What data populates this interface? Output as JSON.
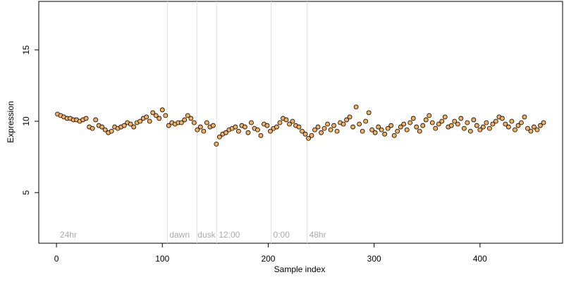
{
  "chart_data": {
    "type": "scatter",
    "x_label": "Sample index",
    "y_label": "Expression",
    "xlim": [
      -16.7,
      478
    ],
    "ylim": [
      1.45,
      18.4
    ],
    "xticks": [
      0,
      100,
      200,
      300,
      400
    ],
    "yticks": [
      5,
      10,
      15
    ],
    "vlines": [
      104.7,
      132.7,
      151.3,
      202.7,
      236.7
    ],
    "annotations": [
      {
        "x": 3.3,
        "text": "24hr"
      },
      {
        "x": 106.7,
        "text": "dawn"
      },
      {
        "x": 133.3,
        "text": "dusk"
      },
      {
        "x": 153.3,
        "text": "12:00"
      },
      {
        "x": 204.7,
        "text": "0:00"
      },
      {
        "x": 238.7,
        "text": "48hr"
      }
    ],
    "series": [
      {
        "color": "#f0b060",
        "x": [
          1,
          4,
          7,
          10,
          13,
          16,
          19,
          22,
          25,
          28,
          31,
          34,
          37,
          40,
          43,
          46,
          49,
          52,
          55,
          58,
          61,
          64,
          67,
          70,
          73,
          76,
          79,
          82,
          85,
          88,
          91,
          94,
          97,
          100,
          103,
          106,
          109,
          112,
          115,
          118,
          121,
          124,
          127,
          130,
          133,
          136,
          139,
          142,
          145,
          148,
          151,
          154,
          157,
          160,
          163,
          166,
          169,
          172,
          175,
          178,
          181,
          184,
          187,
          190,
          193,
          196,
          199,
          202,
          205,
          208,
          211,
          214,
          217,
          220,
          223,
          226,
          229,
          232,
          235,
          238,
          241,
          244,
          247,
          250,
          253,
          256,
          259,
          262,
          265,
          268,
          271,
          274,
          277,
          280,
          283,
          286,
          289,
          292,
          295,
          298,
          301,
          304,
          307,
          310,
          313,
          316,
          319,
          322,
          325,
          328,
          331,
          334,
          337,
          340,
          343,
          346,
          349,
          352,
          355,
          358,
          361,
          364,
          367,
          370,
          373,
          376,
          379,
          382,
          385,
          388,
          391,
          394,
          397,
          400,
          403,
          406,
          409,
          412,
          415,
          418,
          421,
          424,
          427,
          430,
          433,
          436,
          439,
          442,
          445,
          448,
          451,
          454,
          457,
          460
        ],
        "values": [
          10.5,
          10.4,
          10.3,
          10.2,
          10.2,
          10.1,
          10.1,
          10.0,
          10.1,
          10.2,
          9.6,
          9.5,
          10.1,
          9.7,
          9.6,
          9.4,
          9.2,
          9.3,
          9.6,
          9.5,
          9.6,
          9.7,
          9.9,
          9.8,
          9.6,
          9.9,
          10.0,
          10.2,
          10.3,
          10.0,
          10.6,
          10.4,
          10.2,
          10.8,
          10.4,
          9.7,
          9.9,
          9.8,
          9.9,
          9.9,
          10.1,
          10.4,
          10.2,
          9.9,
          9.4,
          9.6,
          9.3,
          9.9,
          9.6,
          9.7,
          8.4,
          8.9,
          9.1,
          9.2,
          9.4,
          9.5,
          9.6,
          9.3,
          9.7,
          9.6,
          9.2,
          9.9,
          9.5,
          9.4,
          9.0,
          9.8,
          9.7,
          9.3,
          9.5,
          9.6,
          9.9,
          10.2,
          10.1,
          9.8,
          10.0,
          9.7,
          9.6,
          9.3,
          9.1,
          8.8,
          9.0,
          9.4,
          9.6,
          9.2,
          9.5,
          9.8,
          9.4,
          9.7,
          9.3,
          9.9,
          9.8,
          10.1,
          10.3,
          9.6,
          11.0,
          9.8,
          9.3,
          10.0,
          10.6,
          9.4,
          9.2,
          9.6,
          9.4,
          9.1,
          9.5,
          9.7,
          9.0,
          9.3,
          9.6,
          9.8,
          9.4,
          9.9,
          10.2,
          9.6,
          9.3,
          9.7,
          10.1,
          10.4,
          9.9,
          9.5,
          9.8,
          10.0,
          10.3,
          9.6,
          9.7,
          10.0,
          9.8,
          10.2,
          9.5,
          9.9,
          9.3,
          10.1,
          9.7,
          9.4,
          9.6,
          9.9,
          9.5,
          9.8,
          10.0,
          10.3,
          10.2,
          9.8,
          9.6,
          10.0,
          9.4,
          9.7,
          9.9,
          10.3,
          9.5,
          9.3,
          9.6,
          9.4,
          9.7,
          9.9
        ]
      }
    ]
  }
}
